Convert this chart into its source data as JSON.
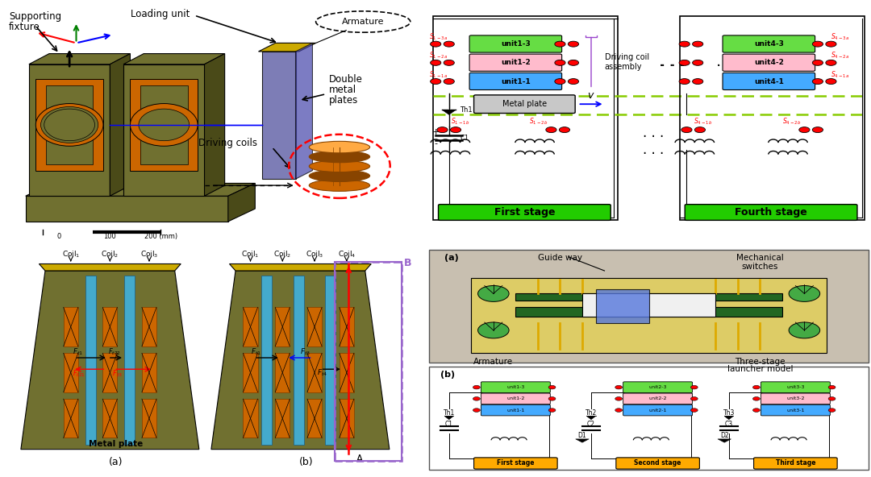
{
  "background_color": "#ffffff",
  "figsize": [
    10.8,
    5.92
  ],
  "dpi": 100,
  "colors": {
    "olive_green": "#707030",
    "olive_dark": "#4a4a18",
    "orange": "#cc6600",
    "orange_dark": "#884400",
    "blue_purple": "#6666aa",
    "gold": "#ccaa00",
    "cyan": "#44aacc",
    "green_label": "#22cc00",
    "green_label4": "#22cc00",
    "red": "#cc0000",
    "dashed_purple": "#9966cc",
    "gray_photo": "#b0a898",
    "orange_stage": "#ffaa00"
  },
  "panels": {
    "tl": [
      0.01,
      0.5,
      0.465,
      0.49
    ],
    "tr": [
      0.49,
      0.5,
      0.51,
      0.49
    ],
    "bl": [
      0.01,
      0.01,
      0.465,
      0.48
    ],
    "br": [
      0.49,
      0.01,
      0.51,
      0.48
    ]
  }
}
